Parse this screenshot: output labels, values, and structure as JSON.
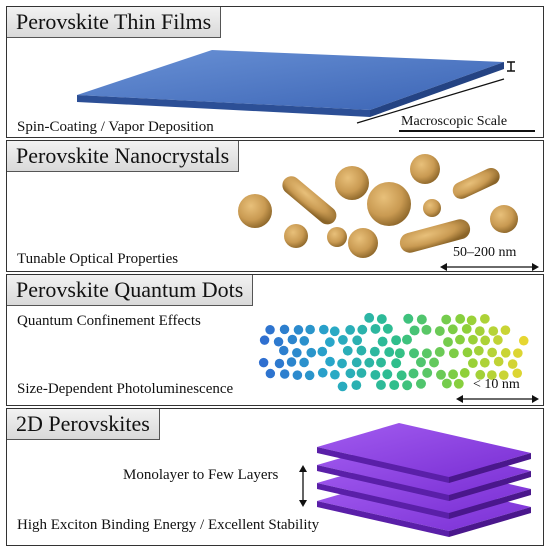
{
  "panels": [
    {
      "title": "Perovskite Thin Films",
      "labels": [
        "Spin-Coating / Vapor Deposition"
      ],
      "scale": "Macroscopic Scale",
      "colors": {
        "film_top": "#5580c8",
        "film_edge": "#2c4f96"
      }
    },
    {
      "title": "Perovskite Nanocrystals",
      "labels": [
        "Tunable Optical Properties"
      ],
      "scale": "50–200 nm",
      "colors": {
        "particle": "#c99a52",
        "particle_dark": "#8a6428"
      }
    },
    {
      "title": "Perovskite Quantum Dots",
      "labels": [
        "Quantum Confinement Effects",
        "Size-Dependent Photoluminescence"
      ],
      "scale": "< 10 nm",
      "colors": {
        "gradient": [
          "#2f6fd0",
          "#28a7c9",
          "#2fbf8a",
          "#8bd03a",
          "#ecd630"
        ]
      }
    },
    {
      "title": "2D Perovskites",
      "labels": [
        "Monolayer to Few Layers",
        "High Exciton Binding Energy / Excellent Stability"
      ],
      "colors": {
        "layer_top": "#8c3fe0",
        "layer_side": "#5a1fa8"
      }
    }
  ]
}
